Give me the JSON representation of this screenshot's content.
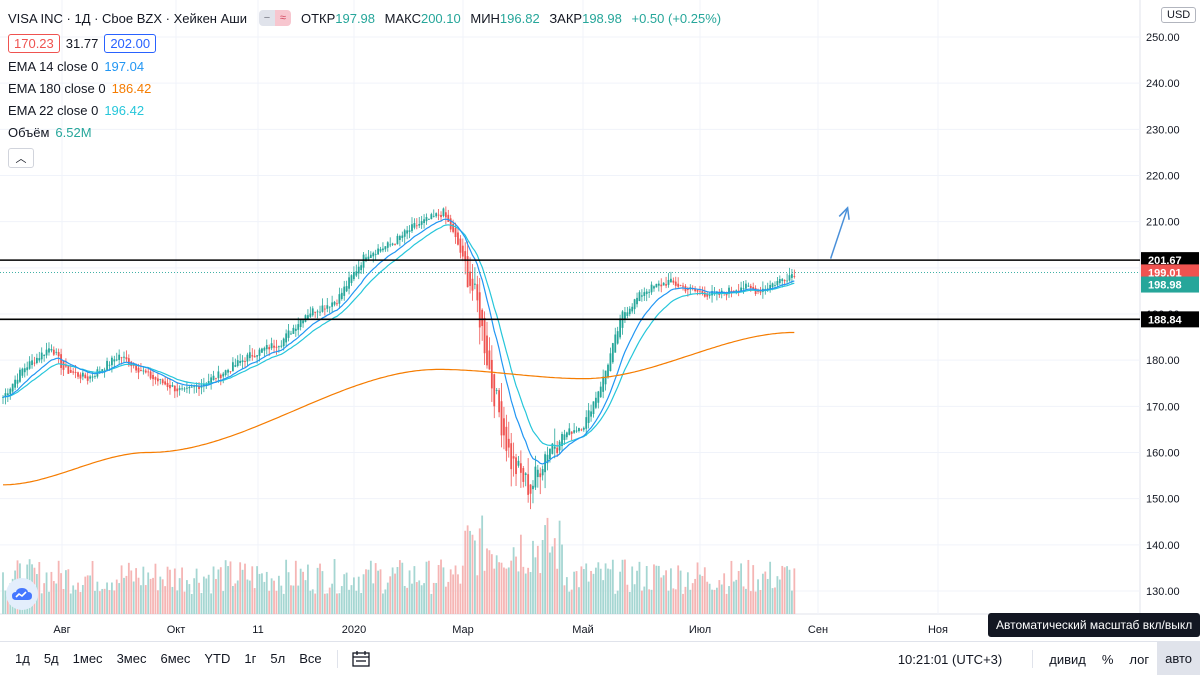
{
  "header": {
    "title": "VISA INC · 1Д · Cboe BZX · Хейкен Аши",
    "toggle_gray_icon": "minus-icon",
    "toggle_pink_icon": "approx-icon",
    "ohlc": {
      "open_label": "ОТКР",
      "open_value": "197.98",
      "high_label": "МАКС",
      "high_value": "200.10",
      "low_label": "МИН",
      "low_value": "196.82",
      "close_label": "ЗАКР",
      "close_value": "198.98",
      "change": "+0.50 (+0.25%)"
    },
    "sell_box": "170.23",
    "spread": "31.77",
    "buy_box": "202.00"
  },
  "indicators": [
    {
      "label": "EMA 14 close 0",
      "value": "197.04",
      "color": "#2196f3"
    },
    {
      "label": "EMA 180 close 0",
      "value": "186.42",
      "color": "#f57c00"
    },
    {
      "label": "EMA 22 close 0",
      "value": "196.42",
      "color": "#26c6da"
    },
    {
      "label": "Объём",
      "value": "6.52M",
      "color": "#26a69a"
    }
  ],
  "collapse_icon": "chevron-up-icon",
  "currency": "USD",
  "price_scale": [
    "250.00",
    "240.00",
    "230.00",
    "220.00",
    "210.00",
    "200.00",
    "190.00",
    "180.00",
    "170.00",
    "160.00",
    "150.00",
    "140.00",
    "130.00"
  ],
  "time_axis": [
    "Авг",
    "Окт",
    "11",
    "2020",
    "Мар",
    "Май",
    "Июл",
    "Сен",
    "Ноя"
  ],
  "price_tags": [
    {
      "value": "201.67",
      "style": "dark"
    },
    {
      "value": "199.01",
      "style": "red"
    },
    {
      "value": "198.98",
      "style": "green"
    },
    {
      "value": "188.84",
      "style": "dark"
    }
  ],
  "ranges": [
    "1д",
    "5д",
    "1мес",
    "3мес",
    "6мес",
    "YTD",
    "1г",
    "5л",
    "Все"
  ],
  "calendar_icon": "calendar-range-icon",
  "clock": "10:21:01 (UTC+3)",
  "controls": [
    "дивид",
    "%",
    "лог",
    "авто"
  ],
  "tooltip": "Автоматический масштаб вкл/выкл",
  "logo_icon": "tradingview-cloud-icon",
  "colors": {
    "up": "#26a69a",
    "down": "#ef5350",
    "up_vol": "#a5d6d2",
    "down_vol": "#f5b5b4",
    "ema14": "#2196f3",
    "ema22": "#26c6da",
    "ema180": "#f57c00",
    "level": "#000000",
    "arrow": "#4a90d9",
    "grid": "#f0f3fa"
  },
  "chart_data": {
    "type": "candlestick",
    "title": "VISA INC · 1Д · Cboe BZX · Хейкен Аши",
    "ylim": [
      126,
      255
    ],
    "grid": true,
    "anchors": [
      [
        0,
        172
      ],
      [
        8,
        178
      ],
      [
        20,
        183
      ],
      [
        25,
        178
      ],
      [
        35,
        176
      ],
      [
        48,
        181
      ],
      [
        62,
        176
      ],
      [
        75,
        173
      ],
      [
        90,
        177
      ],
      [
        102,
        181
      ],
      [
        115,
        184
      ],
      [
        125,
        190
      ],
      [
        138,
        193
      ],
      [
        150,
        203
      ],
      [
        160,
        205
      ],
      [
        170,
        209
      ],
      [
        182,
        212
      ],
      [
        188,
        205
      ],
      [
        196,
        192
      ],
      [
        202,
        175
      ],
      [
        210,
        158
      ],
      [
        218,
        152
      ],
      [
        225,
        161
      ],
      [
        232,
        164
      ],
      [
        240,
        166
      ],
      [
        248,
        176
      ],
      [
        256,
        190
      ],
      [
        265,
        195
      ],
      [
        275,
        197
      ],
      [
        285,
        195
      ],
      [
        295,
        194
      ],
      [
        305,
        196
      ],
      [
        312,
        195
      ],
      [
        320,
        197
      ],
      [
        327,
        199
      ]
    ],
    "ema180_points": [
      [
        0,
        153
      ],
      [
        60,
        160
      ],
      [
        180,
        178
      ],
      [
        240,
        176
      ],
      [
        327,
        186
      ]
    ],
    "levels": [
      201.67,
      188.84
    ],
    "last_close": 198.98,
    "arrow": {
      "from": [
        15,
        202
      ],
      "to": [
        22,
        213
      ]
    },
    "volume_max_label": ""
  }
}
